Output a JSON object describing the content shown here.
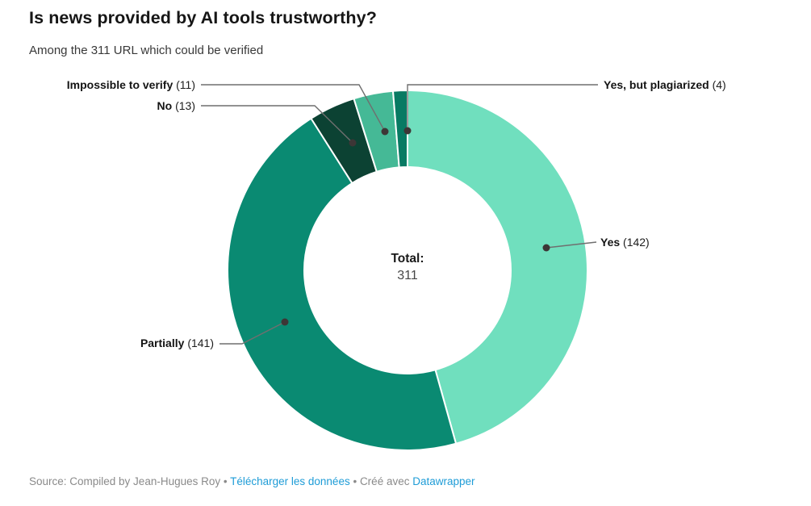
{
  "header": {
    "title": "Is news provided by AI tools trustworthy?",
    "subtitle": "Among the 311 URL which could be verified"
  },
  "chart_data": {
    "type": "pie",
    "variant": "donut",
    "title": "Is news provided by AI tools trustworthy?",
    "subtitle": "Among the 311 URL which could be verified",
    "total": 311,
    "center_label": "Total:",
    "center_value": "311",
    "start_angle_deg": 0,
    "direction": "clockwise",
    "slice_separator_color": "#ffffff",
    "slices": [
      {
        "label": "Yes",
        "value": 142,
        "color": "#70dfbe"
      },
      {
        "label": "Partially",
        "value": 141,
        "color": "#0a8a72"
      },
      {
        "label": "No",
        "value": 13,
        "color": "#0c4233"
      },
      {
        "label": "Impossible to verify",
        "value": 11,
        "color": "#45b996"
      },
      {
        "label": "Yes, but plagiarized",
        "value": 4,
        "color": "#087a63"
      }
    ]
  },
  "center": {
    "label": "Total:",
    "value": "311"
  },
  "callouts": {
    "impossible": {
      "label": "Impossible to verify",
      "count": "(11)"
    },
    "no": {
      "label": "No",
      "count": "(13)"
    },
    "plagiarized": {
      "label": "Yes, but plagiarized",
      "count": "(4)"
    },
    "yes": {
      "label": "Yes",
      "count": "(142)"
    },
    "partially": {
      "label": "Partially",
      "count": "(141)"
    }
  },
  "footer": {
    "source_text": "Source: Compiled by Jean-Hugues Roy",
    "sep1": " • ",
    "download_label": "Télécharger les données",
    "sep2": " • ",
    "created_with": "Créé avec ",
    "datawrapper_label": "Datawrapper",
    "link_color": "#1e9cd7"
  }
}
